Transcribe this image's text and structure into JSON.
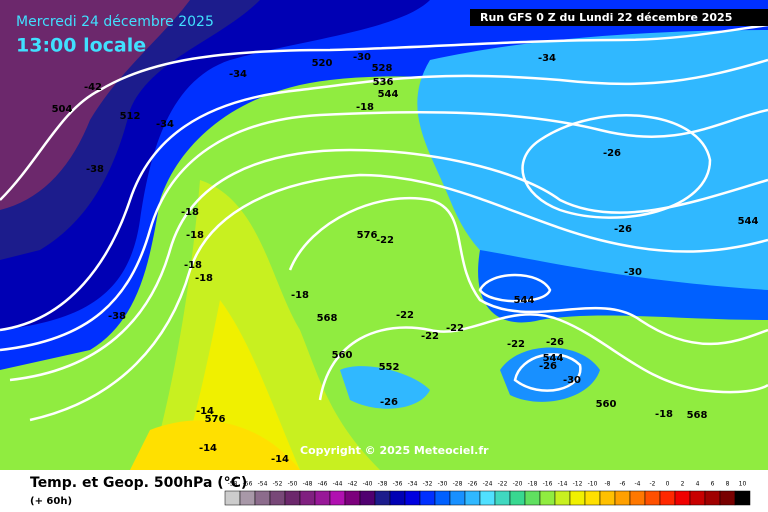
{
  "header": {
    "date": "Mercredi 24 décembre 2025",
    "time": "13:00 locale",
    "run": "Run GFS 0 Z du Lundi 22 décembre 2025"
  },
  "copyright": "Copyright © 2025 Meteociel.fr",
  "footer": {
    "title": "Temp. et Geop. 500hPa (°C)",
    "lead": "(+ 60h)"
  },
  "contour_labels": [
    -42,
    504,
    512,
    -34,
    520,
    -30,
    528,
    536,
    544,
    -18,
    -34,
    -38,
    -34,
    -26,
    -18,
    -18,
    -18,
    -18,
    576,
    -22,
    -26,
    544,
    -30,
    -18,
    544,
    -38,
    568,
    -22,
    -22,
    -22,
    -22,
    -26,
    544,
    -26,
    560,
    552,
    -30,
    -26,
    560,
    -18,
    568,
    -14,
    576,
    -14,
    -14
  ],
  "legend": {
    "values": [
      -58,
      -56,
      -54,
      -52,
      -50,
      -48,
      -46,
      -44,
      -42,
      -40,
      -38,
      -36,
      -34,
      -32,
      -30,
      -28,
      -26,
      -24,
      -22,
      -20,
      -18,
      -16,
      -14,
      -12,
      -10,
      -8,
      -6,
      -4,
      -2,
      0,
      2,
      4,
      6,
      8,
      10
    ],
    "colors": [
      "#cccccc",
      "#a898a8",
      "#8c6c8c",
      "#784878",
      "#6c286c",
      "#802080",
      "#981898",
      "#b010b0",
      "#7c007c",
      "#500070",
      "#1c1c8c",
      "#0000b4",
      "#0000e0",
      "#0030ff",
      "#0060ff",
      "#1890ff",
      "#30b8ff",
      "#50e0ff",
      "#40d8c0",
      "#38d890",
      "#60e060",
      "#90ec40",
      "#c8f020",
      "#f0f000",
      "#ffe000",
      "#ffc000",
      "#ffa000",
      "#ff7800",
      "#ff5000",
      "#ff2800",
      "#f00000",
      "#c80000",
      "#a00000",
      "#780000",
      "#000000"
    ]
  }
}
